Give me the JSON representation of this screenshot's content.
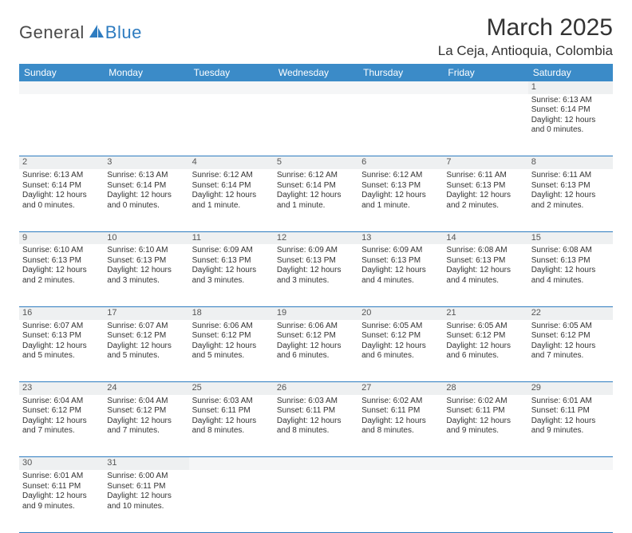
{
  "logo": {
    "part1": "General",
    "part2": "Blue"
  },
  "title": "March 2025",
  "location": "La Ceja, Antioquia, Colombia",
  "colors": {
    "header_bg": "#3b8bc8",
    "header_text": "#ffffff",
    "rule": "#2e7cc0",
    "daynum_bg": "#eef0f1",
    "logo_gray": "#4a4a4a",
    "logo_blue": "#2e7cc0"
  },
  "weekdays": [
    "Sunday",
    "Monday",
    "Tuesday",
    "Wednesday",
    "Thursday",
    "Friday",
    "Saturday"
  ],
  "weeks": [
    {
      "nums": [
        "",
        "",
        "",
        "",
        "",
        "",
        "1"
      ],
      "cells": [
        null,
        null,
        null,
        null,
        null,
        null,
        {
          "sr": "6:13 AM",
          "ss": "6:14 PM",
          "dl": "12 hours and 0 minutes."
        }
      ]
    },
    {
      "nums": [
        "2",
        "3",
        "4",
        "5",
        "6",
        "7",
        "8"
      ],
      "cells": [
        {
          "sr": "6:13 AM",
          "ss": "6:14 PM",
          "dl": "12 hours and 0 minutes."
        },
        {
          "sr": "6:13 AM",
          "ss": "6:14 PM",
          "dl": "12 hours and 0 minutes."
        },
        {
          "sr": "6:12 AM",
          "ss": "6:14 PM",
          "dl": "12 hours and 1 minute."
        },
        {
          "sr": "6:12 AM",
          "ss": "6:14 PM",
          "dl": "12 hours and 1 minute."
        },
        {
          "sr": "6:12 AM",
          "ss": "6:13 PM",
          "dl": "12 hours and 1 minute."
        },
        {
          "sr": "6:11 AM",
          "ss": "6:13 PM",
          "dl": "12 hours and 2 minutes."
        },
        {
          "sr": "6:11 AM",
          "ss": "6:13 PM",
          "dl": "12 hours and 2 minutes."
        }
      ]
    },
    {
      "nums": [
        "9",
        "10",
        "11",
        "12",
        "13",
        "14",
        "15"
      ],
      "cells": [
        {
          "sr": "6:10 AM",
          "ss": "6:13 PM",
          "dl": "12 hours and 2 minutes."
        },
        {
          "sr": "6:10 AM",
          "ss": "6:13 PM",
          "dl": "12 hours and 3 minutes."
        },
        {
          "sr": "6:09 AM",
          "ss": "6:13 PM",
          "dl": "12 hours and 3 minutes."
        },
        {
          "sr": "6:09 AM",
          "ss": "6:13 PM",
          "dl": "12 hours and 3 minutes."
        },
        {
          "sr": "6:09 AM",
          "ss": "6:13 PM",
          "dl": "12 hours and 4 minutes."
        },
        {
          "sr": "6:08 AM",
          "ss": "6:13 PM",
          "dl": "12 hours and 4 minutes."
        },
        {
          "sr": "6:08 AM",
          "ss": "6:13 PM",
          "dl": "12 hours and 4 minutes."
        }
      ]
    },
    {
      "nums": [
        "16",
        "17",
        "18",
        "19",
        "20",
        "21",
        "22"
      ],
      "cells": [
        {
          "sr": "6:07 AM",
          "ss": "6:13 PM",
          "dl": "12 hours and 5 minutes."
        },
        {
          "sr": "6:07 AM",
          "ss": "6:12 PM",
          "dl": "12 hours and 5 minutes."
        },
        {
          "sr": "6:06 AM",
          "ss": "6:12 PM",
          "dl": "12 hours and 5 minutes."
        },
        {
          "sr": "6:06 AM",
          "ss": "6:12 PM",
          "dl": "12 hours and 6 minutes."
        },
        {
          "sr": "6:05 AM",
          "ss": "6:12 PM",
          "dl": "12 hours and 6 minutes."
        },
        {
          "sr": "6:05 AM",
          "ss": "6:12 PM",
          "dl": "12 hours and 6 minutes."
        },
        {
          "sr": "6:05 AM",
          "ss": "6:12 PM",
          "dl": "12 hours and 7 minutes."
        }
      ]
    },
    {
      "nums": [
        "23",
        "24",
        "25",
        "26",
        "27",
        "28",
        "29"
      ],
      "cells": [
        {
          "sr": "6:04 AM",
          "ss": "6:12 PM",
          "dl": "12 hours and 7 minutes."
        },
        {
          "sr": "6:04 AM",
          "ss": "6:12 PM",
          "dl": "12 hours and 7 minutes."
        },
        {
          "sr": "6:03 AM",
          "ss": "6:11 PM",
          "dl": "12 hours and 8 minutes."
        },
        {
          "sr": "6:03 AM",
          "ss": "6:11 PM",
          "dl": "12 hours and 8 minutes."
        },
        {
          "sr": "6:02 AM",
          "ss": "6:11 PM",
          "dl": "12 hours and 8 minutes."
        },
        {
          "sr": "6:02 AM",
          "ss": "6:11 PM",
          "dl": "12 hours and 9 minutes."
        },
        {
          "sr": "6:01 AM",
          "ss": "6:11 PM",
          "dl": "12 hours and 9 minutes."
        }
      ]
    },
    {
      "nums": [
        "30",
        "31",
        "",
        "",
        "",
        "",
        ""
      ],
      "cells": [
        {
          "sr": "6:01 AM",
          "ss": "6:11 PM",
          "dl": "12 hours and 9 minutes."
        },
        {
          "sr": "6:00 AM",
          "ss": "6:11 PM",
          "dl": "12 hours and 10 minutes."
        },
        null,
        null,
        null,
        null,
        null
      ]
    }
  ],
  "labels": {
    "sunrise": "Sunrise:",
    "sunset": "Sunset:",
    "daylight": "Daylight:"
  }
}
